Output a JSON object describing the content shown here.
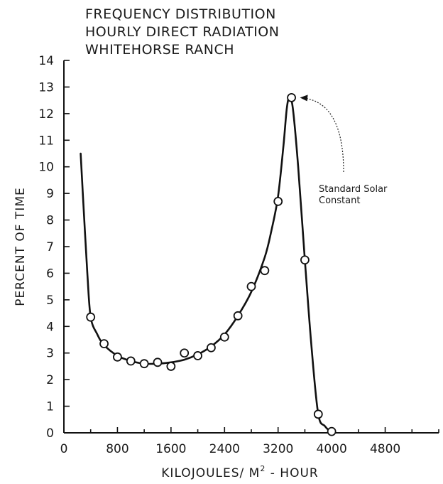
{
  "chart_data": {
    "type": "line",
    "title_lines": [
      "FREQUENCY DISTRIBUTION",
      "HOURLY DIRECT RADIATION",
      "WHITEHORSE RANCH"
    ],
    "xlabel_prefix": "KILOJOULES/ M",
    "xlabel_sup": "2",
    "xlabel_suffix": " - HOUR",
    "ylabel": "PERCENT OF TIME",
    "xlim": [
      0,
      5600
    ],
    "ylim": [
      0,
      14
    ],
    "x_tick_labels": [
      {
        "value": 0,
        "label": "0"
      },
      {
        "value": 800,
        "label": "800"
      },
      {
        "value": 1600,
        "label": "1600"
      },
      {
        "value": 2400,
        "label": "2400"
      },
      {
        "value": 3200,
        "label": "3200"
      },
      {
        "value": 4000,
        "label": "4000"
      },
      {
        "value": 4800,
        "label": "4800"
      }
    ],
    "y_tick_labels": [
      {
        "value": 0,
        "label": "0"
      },
      {
        "value": 1,
        "label": "1"
      },
      {
        "value": 2,
        "label": "2"
      },
      {
        "value": 3,
        "label": "3"
      },
      {
        "value": 4,
        "label": "4"
      },
      {
        "value": 5,
        "label": "5"
      },
      {
        "value": 6,
        "label": "6"
      },
      {
        "value": 7,
        "label": "7"
      },
      {
        "value": 8,
        "label": "8"
      },
      {
        "value": 9,
        "label": "9"
      },
      {
        "value": 10,
        "label": "10"
      },
      {
        "value": 11,
        "label": "11"
      },
      {
        "value": 12,
        "label": "12"
      },
      {
        "value": 13,
        "label": "13"
      },
      {
        "value": 14,
        "label": "14"
      }
    ],
    "x_minor_tick_step": 400,
    "series": [
      {
        "points": [
          {
            "x": 400,
            "y": 4.35
          },
          {
            "x": 600,
            "y": 3.35
          },
          {
            "x": 800,
            "y": 2.85
          },
          {
            "x": 1000,
            "y": 2.7
          },
          {
            "x": 1200,
            "y": 2.6
          },
          {
            "x": 1400,
            "y": 2.65
          },
          {
            "x": 1600,
            "y": 2.5
          },
          {
            "x": 1800,
            "y": 3.0
          },
          {
            "x": 2000,
            "y": 2.9
          },
          {
            "x": 2200,
            "y": 3.2
          },
          {
            "x": 2400,
            "y": 3.6
          },
          {
            "x": 2600,
            "y": 4.4
          },
          {
            "x": 2800,
            "y": 5.5
          },
          {
            "x": 3000,
            "y": 6.1
          },
          {
            "x": 3200,
            "y": 8.7
          },
          {
            "x": 3400,
            "y": 12.6
          },
          {
            "x": 3600,
            "y": 6.5
          },
          {
            "x": 3800,
            "y": 0.7
          },
          {
            "x": 4000,
            "y": 0.05
          }
        ],
        "curve": [
          {
            "x": 250,
            "y": 10.5
          },
          {
            "x": 300,
            "y": 8.2
          },
          {
            "x": 350,
            "y": 6.0
          },
          {
            "x": 400,
            "y": 4.35
          },
          {
            "x": 500,
            "y": 3.7
          },
          {
            "x": 600,
            "y": 3.3
          },
          {
            "x": 800,
            "y": 2.9
          },
          {
            "x": 1000,
            "y": 2.7
          },
          {
            "x": 1200,
            "y": 2.6
          },
          {
            "x": 1400,
            "y": 2.6
          },
          {
            "x": 1600,
            "y": 2.65
          },
          {
            "x": 1800,
            "y": 2.75
          },
          {
            "x": 2000,
            "y": 2.95
          },
          {
            "x": 2200,
            "y": 3.25
          },
          {
            "x": 2400,
            "y": 3.7
          },
          {
            "x": 2600,
            "y": 4.4
          },
          {
            "x": 2800,
            "y": 5.3
          },
          {
            "x": 3000,
            "y": 6.6
          },
          {
            "x": 3100,
            "y": 7.6
          },
          {
            "x": 3200,
            "y": 8.9
          },
          {
            "x": 3280,
            "y": 10.8
          },
          {
            "x": 3330,
            "y": 12.2
          },
          {
            "x": 3370,
            "y": 12.6
          },
          {
            "x": 3420,
            "y": 12.2
          },
          {
            "x": 3500,
            "y": 10.0
          },
          {
            "x": 3600,
            "y": 6.5
          },
          {
            "x": 3700,
            "y": 3.2
          },
          {
            "x": 3800,
            "y": 0.7
          },
          {
            "x": 3900,
            "y": 0.25
          },
          {
            "x": 4000,
            "y": 0.0
          }
        ]
      }
    ],
    "annotation": {
      "lines": [
        "Standard Solar",
        "Constant"
      ],
      "points_to": {
        "x": 3400,
        "y": 12.6
      }
    },
    "grid": false,
    "line_color": "#111111",
    "marker_fill": "#ffffff"
  }
}
